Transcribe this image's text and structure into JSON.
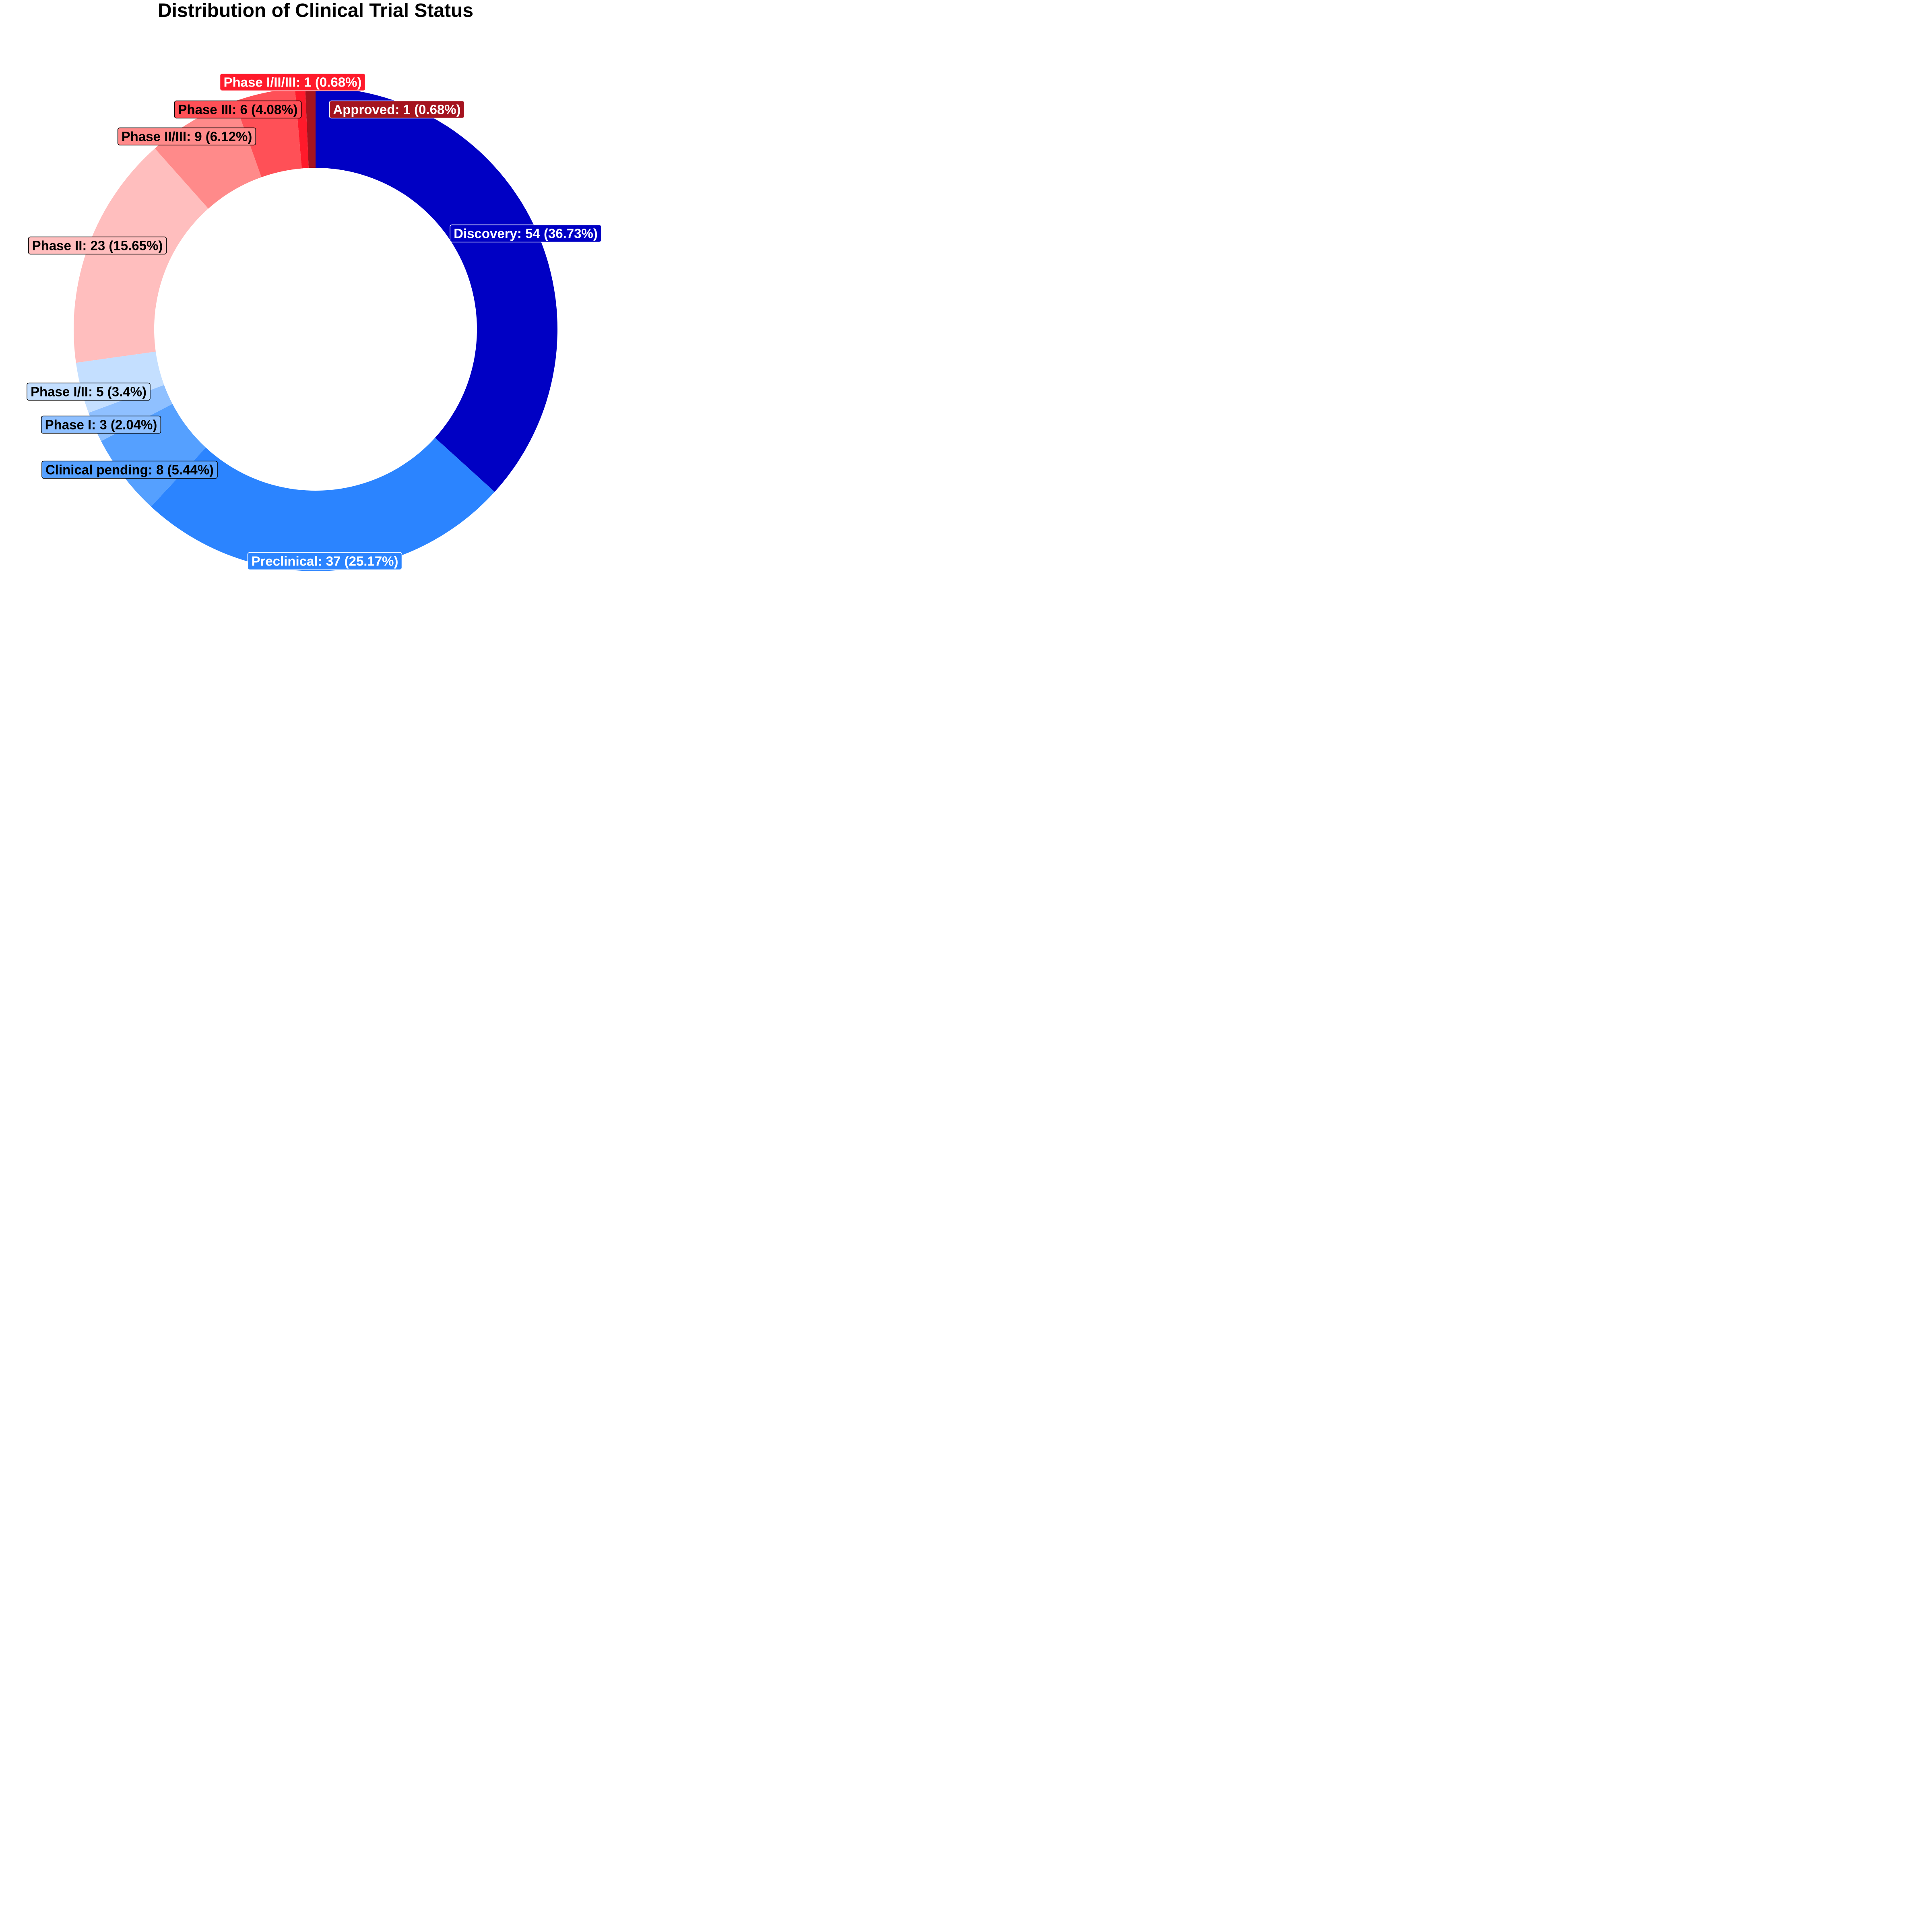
{
  "chart_data": {
    "type": "pie",
    "title": "Distribution of Clinical Trial Status",
    "donut": true,
    "start_angle": "12 o'clock",
    "direction": "clockwise",
    "slices": [
      {
        "label": "Discovery",
        "value": 54,
        "percent": "36.73%",
        "text": "Discovery: 54 (36.73%)",
        "color": "#0000c4",
        "text_color": "#ffffff"
      },
      {
        "label": "Preclinical",
        "value": 37,
        "percent": "25.17%",
        "text": "Preclinical: 37 (25.17%)",
        "color": "#2b84ff",
        "text_color": "#ffffff"
      },
      {
        "label": "Clinical pending",
        "value": 8,
        "percent": "5.44%",
        "text": "Clinical pending: 8 (5.44%)",
        "color": "#55a0ff",
        "text_color": "#000000"
      },
      {
        "label": "Phase I",
        "value": 3,
        "percent": "2.04%",
        "text": "Phase I: 3 (2.04%)",
        "color": "#8fc0ff",
        "text_color": "#000000"
      },
      {
        "label": "Phase I/II",
        "value": 5,
        "percent": "3.4%",
        "text": "Phase I/II: 5 (3.4%)",
        "color": "#c4dfff",
        "text_color": "#000000"
      },
      {
        "label": "Phase II",
        "value": 23,
        "percent": "15.65%",
        "text": "Phase II: 23 (15.65%)",
        "color": "#ffbebe",
        "text_color": "#000000"
      },
      {
        "label": "Phase II/III",
        "value": 9,
        "percent": "6.12%",
        "text": "Phase II/III: 9 (6.12%)",
        "color": "#ff8a8a",
        "text_color": "#000000"
      },
      {
        "label": "Phase III",
        "value": 6,
        "percent": "4.08%",
        "text": "Phase III: 6 (4.08%)",
        "color": "#ff5057",
        "text_color": "#000000"
      },
      {
        "label": "Phase I/II/III",
        "value": 1,
        "percent": "0.68%",
        "text": "Phase I/II/III: 1 (0.68%)",
        "color": "#ff1a2b",
        "text_color": "#ffffff"
      },
      {
        "label": "Approved",
        "value": 1,
        "percent": "0.68%",
        "text": "Approved: 1 (0.68%)",
        "color": "#a5141f",
        "text_color": "#ffffff"
      }
    ]
  }
}
